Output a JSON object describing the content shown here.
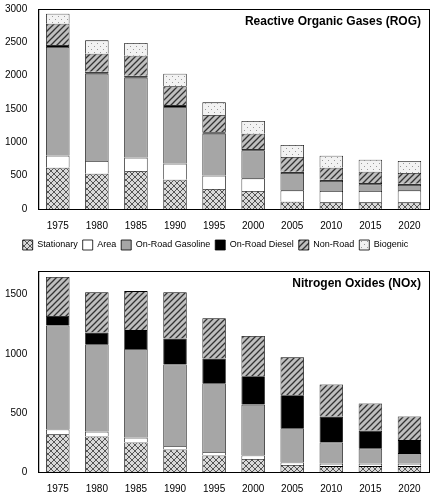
{
  "chart_data": [
    {
      "type": "bar",
      "title": "Reactive Organic Gases (ROG)",
      "stacked": true,
      "grid": false,
      "legend": "bottom",
      "categories": [
        "1975",
        "1980",
        "1985",
        "1990",
        "1995",
        "2000",
        "2005",
        "2010",
        "2015",
        "2020"
      ],
      "ylim": [
        0,
        3000
      ],
      "yticks": [
        0,
        500,
        1000,
        1500,
        2000,
        2500,
        3000
      ],
      "series": [
        {
          "name": "Stationary",
          "color": "#d9d9d9",
          "values": [
            620,
            530,
            570,
            440,
            300,
            270,
            110,
            100,
            100,
            100
          ]
        },
        {
          "name": "Area",
          "color": "#ffffff",
          "values": [
            180,
            190,
            200,
            240,
            200,
            190,
            170,
            170,
            170,
            180
          ]
        },
        {
          "name": "On-Road Gasoline",
          "color": "#a6a6a6",
          "values": [
            1630,
            1310,
            1200,
            850,
            630,
            420,
            260,
            150,
            100,
            80
          ]
        },
        {
          "name": "On-Road Diesel",
          "color": "#000000",
          "values": [
            30,
            30,
            30,
            30,
            20,
            20,
            20,
            20,
            20,
            20
          ]
        },
        {
          "name": "Non-Road",
          "color": "#bfbfbf",
          "values": [
            320,
            270,
            300,
            280,
            260,
            230,
            220,
            180,
            170,
            160
          ]
        },
        {
          "name": "Biogenic",
          "color": "#f2f2f2",
          "values": [
            150,
            200,
            190,
            190,
            190,
            190,
            180,
            180,
            180,
            180
          ]
        }
      ]
    },
    {
      "type": "bar",
      "title": "Nitrogen Oxides (NOx)",
      "stacked": true,
      "grid": false,
      "categories": [
        "1975",
        "1980",
        "1985",
        "1990",
        "1995",
        "2000",
        "2005",
        "2010",
        "2015",
        "2020"
      ],
      "ylim": [
        0,
        1700
      ],
      "yticks": [
        0,
        500,
        1000,
        1500
      ],
      "series": [
        {
          "name": "Stationary",
          "color": "#d9d9d9",
          "values": [
            320,
            300,
            250,
            190,
            140,
            110,
            60,
            50,
            50,
            50
          ]
        },
        {
          "name": "Area",
          "color": "#ffffff",
          "values": [
            40,
            40,
            40,
            30,
            30,
            30,
            20,
            20,
            20,
            20
          ]
        },
        {
          "name": "On-Road Gasoline",
          "color": "#a6a6a6",
          "values": [
            880,
            740,
            750,
            690,
            580,
            430,
            290,
            180,
            130,
            90
          ]
        },
        {
          "name": "On-Road Diesel",
          "color": "#000000",
          "values": [
            80,
            100,
            160,
            220,
            210,
            240,
            280,
            220,
            150,
            110
          ]
        },
        {
          "name": "Non-Road",
          "color": "#bfbfbf",
          "values": [
            330,
            340,
            330,
            390,
            340,
            340,
            320,
            270,
            230,
            200
          ]
        }
      ]
    }
  ]
}
